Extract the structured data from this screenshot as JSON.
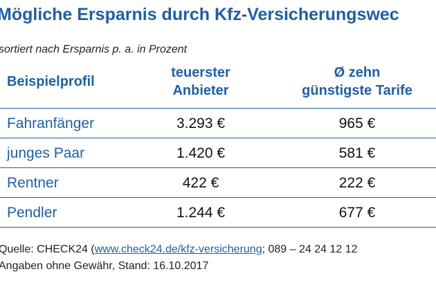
{
  "title": "Mögliche Ersparnis durch Kfz-Versicherungswec",
  "subtitle": "sortiert nach Ersparnis p. a. in Prozent",
  "table": {
    "headers": {
      "profile": "Beispielprofil",
      "expensive_line1": "teuerster",
      "expensive_line2": "Anbieter",
      "cheapest_line1": "Ø zehn",
      "cheapest_line2": "günstigste Tarife"
    },
    "rows": [
      {
        "profile": "Fahranfänger",
        "expensive": "3.293 €",
        "cheapest": "965 €"
      },
      {
        "profile": "junges Paar",
        "expensive": "1.420 €",
        "cheapest": "581 €"
      },
      {
        "profile": "Rentner",
        "expensive": "422 €",
        "cheapest": "222 €"
      },
      {
        "profile": "Pendler",
        "expensive": "1.244 €",
        "cheapest": "677 €"
      }
    ]
  },
  "footer": {
    "source_prefix": "Quelle: CHECK24 (",
    "source_link": "www.check24.de/kfz-versicherung",
    "source_suffix": "; 089 – 24 24 12 12",
    "note": "Angaben ohne Gewähr, Stand: 16.10.2017"
  },
  "colors": {
    "accent": "#1f5fa3",
    "text": "#111111"
  }
}
